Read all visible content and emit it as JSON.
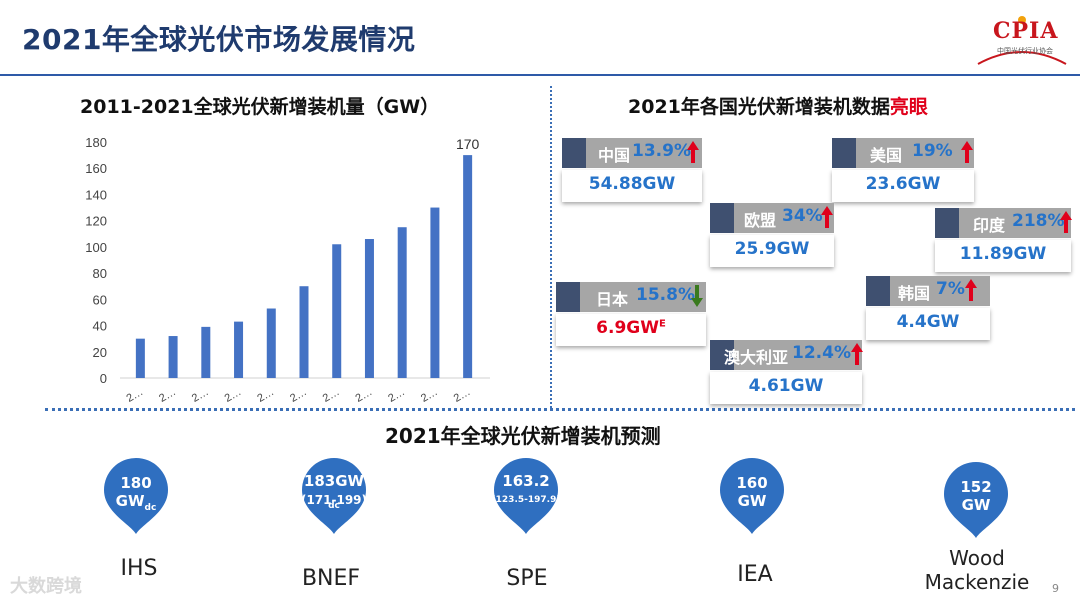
{
  "page": {
    "title": "2021年全球光伏市场发展情况",
    "logo_text": "CPIA",
    "logo_sub": "中国光伏行业协会",
    "page_number": "9",
    "watermark": "大数跨境"
  },
  "chart_data": {
    "type": "bar",
    "title": "2011-2021全球光伏新增装机量（GW）",
    "categories": [
      "2…",
      "2…",
      "2…",
      "2…",
      "2…",
      "2…",
      "2…",
      "2…",
      "2…",
      "2…",
      "2…"
    ],
    "values": [
      30,
      32,
      39,
      43,
      53,
      70,
      102,
      106,
      115,
      130,
      170
    ],
    "data_labels": [
      "",
      "",
      "",
      "",
      "",
      "",
      "",
      "",
      "",
      "",
      "170"
    ],
    "yticks": [
      "0",
      "20",
      "40",
      "60",
      "80",
      "100",
      "120",
      "140",
      "160",
      "180"
    ],
    "ylim": [
      0,
      180
    ],
    "color": "#4472c4",
    "grid": false
  },
  "countries": {
    "title_main": "2021年各国光伏新增装机数据",
    "title_highlight": "亮眼",
    "items": [
      {
        "name": "中国",
        "pct": "13.9%",
        "dir": "up",
        "value": "54.88GW",
        "sup": ""
      },
      {
        "name": "美国",
        "pct": "19%",
        "dir": "up",
        "value": "23.6GW",
        "sup": ""
      },
      {
        "name": "欧盟",
        "pct": "34%",
        "dir": "up",
        "value": "25.9GW",
        "sup": ""
      },
      {
        "name": "印度",
        "pct": "218%",
        "dir": "up",
        "value": "11.89GW",
        "sup": ""
      },
      {
        "name": "日本",
        "pct": "15.8%",
        "dir": "down",
        "value": "6.9GW",
        "sup": "E"
      },
      {
        "name": "韩国",
        "pct": "7%",
        "dir": "up",
        "value": "4.4GW",
        "sup": ""
      },
      {
        "name": "澳大利亚",
        "pct": "12.4%",
        "dir": "up",
        "value": "4.61GW",
        "sup": ""
      }
    ]
  },
  "forecast": {
    "title": "2021年全球光伏新增装机预测",
    "items": [
      {
        "org": "IHS",
        "line1": "180",
        "line2": "GW",
        "sub": "dc",
        "range": ""
      },
      {
        "org": "BNEF",
        "line1": "183GW",
        "line2": "",
        "sub": "dc",
        "range": "(171-199)"
      },
      {
        "org": "SPE",
        "line1": "163.2",
        "line2": "",
        "sub": "",
        "range": "(123.5-197.9)"
      },
      {
        "org": "IEA",
        "line1": "160",
        "line2": "GW",
        "sub": "",
        "range": ""
      },
      {
        "org": "Wood Mackenzie",
        "line1": "152",
        "line2": "GW",
        "sub": "",
        "range": ""
      }
    ]
  },
  "colors": {
    "accent": "#2673c9",
    "pin": "#2f6fc0",
    "up": "#e0001b",
    "down": "#3a7a1e"
  }
}
